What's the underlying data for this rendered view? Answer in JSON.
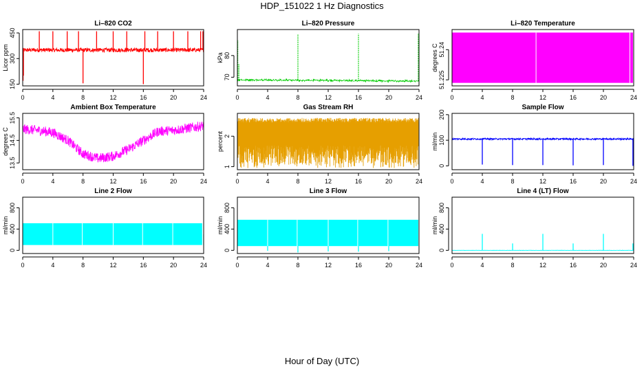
{
  "page": {
    "title": "HDP_151022  1 Hz Diagnostics",
    "xlabel": "Hour of Day (UTC)"
  },
  "chart_data": [
    {
      "type": "line",
      "title": "Li–820 CO2",
      "ylabel": "Licor ppm",
      "color": "#ff0000",
      "style": "line",
      "xlim": [
        0,
        24
      ],
      "ylim": [
        140,
        470
      ],
      "xticks": [
        0,
        4,
        8,
        12,
        16,
        20,
        24
      ],
      "yticks": [
        150,
        300,
        450
      ],
      "baseline": 350,
      "noise": 12,
      "band": null,
      "drift": null,
      "spikes": [
        {
          "x": 0.05,
          "y": 170
        },
        {
          "x": 0.1,
          "y": 200
        },
        {
          "x": 2.2,
          "y": 460
        },
        {
          "x": 4.0,
          "y": 460
        },
        {
          "x": 5.9,
          "y": 460
        },
        {
          "x": 7.4,
          "y": 460
        },
        {
          "x": 8.0,
          "y": 155
        },
        {
          "x": 9.8,
          "y": 460
        },
        {
          "x": 12.0,
          "y": 460
        },
        {
          "x": 13.8,
          "y": 460
        },
        {
          "x": 16.0,
          "y": 150
        },
        {
          "x": 16.2,
          "y": 460
        },
        {
          "x": 17.9,
          "y": 460
        },
        {
          "x": 20.0,
          "y": 460
        },
        {
          "x": 21.9,
          "y": 460
        },
        {
          "x": 23.6,
          "y": 460
        },
        {
          "x": 23.9,
          "y": 460
        }
      ]
    },
    {
      "type": "line",
      "title": "Li–820 Pressure",
      "ylabel": "kPa",
      "color": "#00cc00",
      "style": "dotted",
      "xlim": [
        0,
        24
      ],
      "ylim": [
        66,
        92
      ],
      "xticks": [
        0,
        4,
        8,
        12,
        16,
        20,
        24
      ],
      "yticks": [
        70,
        80
      ],
      "baseline": 68.6,
      "noise": 0.3,
      "band": null,
      "drift": {
        "start": 68.8,
        "end": 68.2
      },
      "spikes": [
        {
          "x": 0.05,
          "y": 87
        },
        {
          "x": 0.2,
          "y": 76
        },
        {
          "x": 8.0,
          "y": 90
        },
        {
          "x": 16.0,
          "y": 90
        },
        {
          "x": 23.9,
          "y": 90
        }
      ]
    },
    {
      "type": "area",
      "title": "Li–820 Temperature",
      "ylabel": "degrees C",
      "color": "#ff00ff",
      "style": "band",
      "xlim": [
        0,
        24
      ],
      "ylim": [
        51.222,
        51.25
      ],
      "xticks": [
        0,
        4,
        8,
        12,
        16,
        20,
        24
      ],
      "yticks": [
        51.225,
        51.24
      ],
      "baseline": null,
      "noise": 0,
      "band": {
        "x0": 0,
        "x1": 23.9,
        "low": 51.2235,
        "high": 51.2485
      },
      "drift": null,
      "gaps": [
        11.1,
        23.5
      ],
      "spikes": []
    },
    {
      "type": "line",
      "title": "Ambient Box Temperature",
      "ylabel": "degrees C",
      "color": "#ff00ff",
      "style": "line",
      "xlim": [
        0,
        24
      ],
      "ylim": [
        13.2,
        15.7
      ],
      "xticks": [
        0,
        4,
        8,
        12,
        16,
        20,
        24
      ],
      "yticks": [
        13.5,
        14.5,
        15.5
      ],
      "baseline": null,
      "noise": 0.22,
      "band": null,
      "drift": null,
      "curve": [
        {
          "x": 0,
          "y": 15.0
        },
        {
          "x": 2,
          "y": 14.95
        },
        {
          "x": 4,
          "y": 14.85
        },
        {
          "x": 6,
          "y": 14.5
        },
        {
          "x": 8,
          "y": 13.9
        },
        {
          "x": 10,
          "y": 13.7
        },
        {
          "x": 12,
          "y": 13.8
        },
        {
          "x": 14,
          "y": 14.1
        },
        {
          "x": 16,
          "y": 14.5
        },
        {
          "x": 18,
          "y": 14.9
        },
        {
          "x": 20,
          "y": 14.95
        },
        {
          "x": 22,
          "y": 15.05
        },
        {
          "x": 24,
          "y": 15.15
        }
      ],
      "spikes": []
    },
    {
      "type": "line",
      "title": "Gas Stream RH",
      "ylabel": "percent",
      "color": "#e69f00",
      "style": "band",
      "xlim": [
        0,
        24
      ],
      "ylim": [
        0.9,
        2.75
      ],
      "xticks": [
        0,
        4,
        8,
        12,
        16,
        20,
        24
      ],
      "yticks": [
        1.0,
        2.0
      ],
      "baseline": null,
      "noise": 0,
      "band": {
        "x0": 0,
        "x1": 23.9,
        "low": 1.1,
        "high": 2.6
      },
      "drift": null,
      "dips": true,
      "spikes": []
    },
    {
      "type": "line",
      "title": "Sample Flow",
      "ylabel": "ml/min",
      "color": "#0000ff",
      "style": "line",
      "xlim": [
        0,
        24
      ],
      "ylim": [
        -15,
        205
      ],
      "xticks": [
        0,
        4,
        8,
        12,
        16,
        20,
        24
      ],
      "yticks": [
        0,
        100,
        200
      ],
      "baseline": 105,
      "noise": 3,
      "band": null,
      "drift": null,
      "spikes": [
        {
          "x": 4.0,
          "y": 5
        },
        {
          "x": 8.0,
          "y": 3
        },
        {
          "x": 12.0,
          "y": 3
        },
        {
          "x": 16.0,
          "y": 2
        },
        {
          "x": 20.0,
          "y": 3
        },
        {
          "x": 23.9,
          "y": 0
        }
      ]
    },
    {
      "type": "area",
      "title": "Line 2 Flow",
      "ylabel": "ml/min",
      "color": "#00ffff",
      "style": "band",
      "xlim": [
        0,
        24
      ],
      "ylim": [
        -60,
        1000
      ],
      "xticks": [
        0,
        4,
        8,
        12,
        16,
        20,
        24
      ],
      "yticks": [
        0,
        400,
        800
      ],
      "baseline": null,
      "noise": 0,
      "band": {
        "x0": 0,
        "x1": 23.8,
        "low": 100,
        "high": 510
      },
      "drift": null,
      "gaps": [
        4.0,
        7.9,
        12.0,
        15.9,
        19.9
      ],
      "spikes": [
        {
          "x": 24.0,
          "y": 300
        }
      ]
    },
    {
      "type": "area",
      "title": "Line 3 Flow",
      "ylabel": "ml/min",
      "color": "#00ffff",
      "style": "band",
      "xlim": [
        0,
        24
      ],
      "ylim": [
        -60,
        1000
      ],
      "xticks": [
        0,
        4,
        8,
        12,
        16,
        20,
        24
      ],
      "yticks": [
        0,
        400,
        800
      ],
      "baseline": null,
      "noise": 0,
      "band": {
        "x0": 0,
        "x1": 23.9,
        "low": 80,
        "high": 575
      },
      "drift": null,
      "gaps": [
        4.0,
        7.9,
        12.0,
        15.9,
        19.9
      ],
      "spikes": [
        {
          "x": 4.0,
          "y": -10
        },
        {
          "x": 8.0,
          "y": -40
        },
        {
          "x": 12.0,
          "y": -20
        },
        {
          "x": 16.0,
          "y": -25
        },
        {
          "x": 20.0,
          "y": -15
        }
      ]
    },
    {
      "type": "line",
      "title": "Line 4 (LT) Flow",
      "ylabel": "ml/min",
      "color": "#00ffff",
      "style": "line",
      "xlim": [
        0,
        24
      ],
      "ylim": [
        -60,
        1000
      ],
      "xticks": [
        0,
        4,
        8,
        12,
        16,
        20,
        24
      ],
      "yticks": [
        0,
        400,
        800
      ],
      "baseline": 0,
      "noise": 2,
      "band": null,
      "drift": null,
      "spikes": [
        {
          "x": 4.0,
          "y": 310
        },
        {
          "x": 8.0,
          "y": 130
        },
        {
          "x": 12.0,
          "y": 310
        },
        {
          "x": 16.0,
          "y": 130
        },
        {
          "x": 20.0,
          "y": 310
        },
        {
          "x": 23.9,
          "y": 130
        }
      ]
    }
  ]
}
